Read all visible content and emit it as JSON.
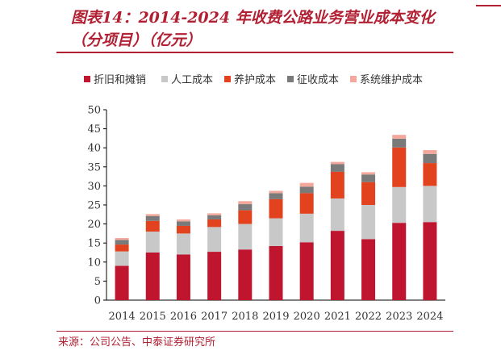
{
  "header": {
    "title": "图表14：2014-2024 年收费公路业务营业成本变化（分项目）（亿元）"
  },
  "footer": {
    "source": "来源：公司公告、中泰证券研究所"
  },
  "chart_data": {
    "type": "bar",
    "stacked": true,
    "categories": [
      "2014",
      "2015",
      "2016",
      "2017",
      "2018",
      "2019",
      "2020",
      "2021",
      "2022",
      "2023",
      "2024"
    ],
    "ylim": [
      0,
      50
    ],
    "yticks": [
      0,
      5,
      10,
      15,
      20,
      25,
      30,
      35,
      40,
      45,
      50
    ],
    "legend_position": "top",
    "grid": false,
    "series": [
      {
        "name": "折旧和摊销",
        "color": "#c0152f",
        "values": [
          9.0,
          12.5,
          12.0,
          12.7,
          13.3,
          14.2,
          15.2,
          18.2,
          16.0,
          20.3,
          20.5
        ]
      },
      {
        "name": "人工成本",
        "color": "#c8c8c8",
        "values": [
          3.8,
          5.5,
          5.5,
          6.5,
          6.7,
          7.3,
          7.5,
          8.5,
          9.0,
          9.4,
          9.5
        ]
      },
      {
        "name": "养护成本",
        "color": "#e2421e",
        "values": [
          1.8,
          2.8,
          2.0,
          2.0,
          3.6,
          5.0,
          5.4,
          7.0,
          6.0,
          10.4,
          6.0
        ]
      },
      {
        "name": "征收成本",
        "color": "#7a7a7a",
        "values": [
          1.2,
          1.3,
          1.2,
          1.1,
          1.6,
          1.6,
          1.7,
          2.0,
          2.0,
          2.3,
          2.4
        ]
      },
      {
        "name": "系统维护成本",
        "color": "#f4a79b",
        "values": [
          0.5,
          0.5,
          0.5,
          0.5,
          0.8,
          0.6,
          1.0,
          0.6,
          0.6,
          1.0,
          1.0
        ]
      }
    ]
  }
}
